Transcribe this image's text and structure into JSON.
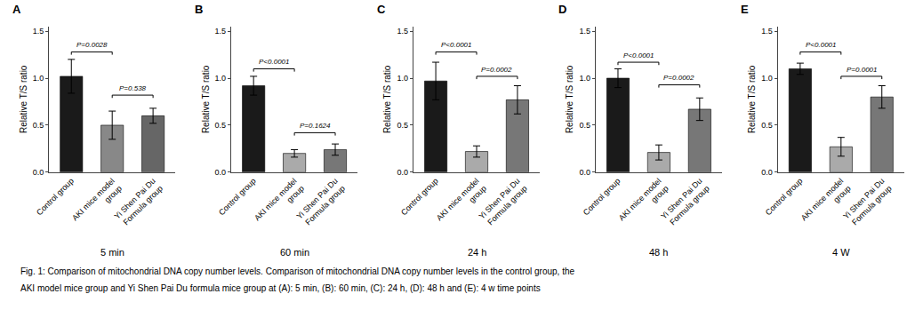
{
  "chart_data": [
    {
      "type": "bar",
      "title": "A",
      "subtitle": "5 min",
      "ylabel": "Relative T/S ratio",
      "categories": [
        "Control group",
        "AKI mice model\ngroup",
        "Yi Shen Pai Du\nFormula group"
      ],
      "values": [
        1.02,
        0.5,
        0.6
      ],
      "errors": [
        0.18,
        0.15,
        0.08
      ],
      "colors": [
        "#1a1a1a",
        "#888888",
        "#666666"
      ],
      "brackets": [
        {
          "bar1": 0,
          "bar2": 1,
          "label": "P=0.0028",
          "height": 1.28
        },
        {
          "bar1": 1,
          "bar2": 2,
          "label": "P=0.538",
          "height": 0.82
        }
      ],
      "ylim": [
        0,
        1.55
      ],
      "yticks": [
        {
          "value": 0.0,
          "label": "0.0"
        },
        0.5,
        {
          "value": 1.0,
          "label": "1.0"
        },
        1.5
      ],
      "grid": false
    },
    {
      "type": "bar",
      "title": "B",
      "subtitle": "60 min",
      "ylabel": "Relative T/S ratio",
      "categories": [
        "Control group",
        "AKI mice model\ngroup",
        "Yi Shen Pai Du\nFormula group"
      ],
      "values": [
        0.92,
        0.2,
        0.24
      ],
      "errors": [
        0.1,
        0.04,
        0.06
      ],
      "colors": [
        "#1a1a1a",
        "#aaaaaa",
        "#777777"
      ],
      "brackets": [
        {
          "bar1": 0,
          "bar2": 1,
          "label": "P<0.0001",
          "height": 1.1
        },
        {
          "bar1": 1,
          "bar2": 2,
          "label": "P=0.1624",
          "height": 0.42
        }
      ],
      "ylim": [
        0,
        1.55
      ],
      "yticks": [
        {
          "value": 0.0,
          "label": "0.0"
        },
        0.5,
        {
          "value": 1.0,
          "label": "1.0"
        },
        1.5
      ],
      "grid": false
    },
    {
      "type": "bar",
      "title": "C",
      "subtitle": "24 h",
      "ylabel": "Relative T/S ratio",
      "categories": [
        "Control group",
        "AKI mice model\ngroup",
        "Yi Shen Pai Du\nFormula group"
      ],
      "values": [
        0.97,
        0.22,
        0.77
      ],
      "errors": [
        0.2,
        0.06,
        0.15
      ],
      "colors": [
        "#1a1a1a",
        "#aaaaaa",
        "#777777"
      ],
      "brackets": [
        {
          "bar1": 0,
          "bar2": 1,
          "label": "P<0.0001",
          "height": 1.28
        },
        {
          "bar1": 1,
          "bar2": 2,
          "label": "P=0.0002",
          "height": 1.02
        }
      ],
      "ylim": [
        0,
        1.55
      ],
      "yticks": [
        {
          "value": 0.0,
          "label": "0.0"
        },
        0.5,
        {
          "value": 1.0,
          "label": "1.0"
        },
        1.5
      ],
      "grid": false
    },
    {
      "type": "bar",
      "title": "D",
      "subtitle": "48 h",
      "ylabel": "Relative T/S ratio",
      "categories": [
        "Control group",
        "AKI mice model\ngroup",
        "Yi Shen Pai Du\nFormula group"
      ],
      "values": [
        1.0,
        0.21,
        0.67
      ],
      "errors": [
        0.1,
        0.08,
        0.12
      ],
      "colors": [
        "#1a1a1a",
        "#aaaaaa",
        "#777777"
      ],
      "brackets": [
        {
          "bar1": 0,
          "bar2": 1,
          "label": "P<0.0001",
          "height": 1.17
        },
        {
          "bar1": 1,
          "bar2": 2,
          "label": "P=0.0002",
          "height": 0.93
        }
      ],
      "ylim": [
        0,
        1.55
      ],
      "yticks": [
        {
          "value": 0.0,
          "label": "0.0"
        },
        0.5,
        {
          "value": 1.0,
          "label": "1.0"
        },
        1.5
      ],
      "grid": false
    },
    {
      "type": "bar",
      "title": "E",
      "subtitle": "4 W",
      "ylabel": "Relative T/S ratio",
      "categories": [
        "Control group",
        "AKI mice model\ngroup",
        "Yi Shen Pai Du\nFormula group"
      ],
      "values": [
        1.1,
        0.27,
        0.8
      ],
      "errors": [
        0.06,
        0.1,
        0.12
      ],
      "colors": [
        "#1a1a1a",
        "#aaaaaa",
        "#777777"
      ],
      "brackets": [
        {
          "bar1": 0,
          "bar2": 1,
          "label": "P<0.0001",
          "height": 1.28
        },
        {
          "bar1": 1,
          "bar2": 2,
          "label": "P=0.0001",
          "height": 1.02
        }
      ],
      "ylim": [
        0,
        1.55
      ],
      "yticks": [
        {
          "value": 0.0,
          "label": "0.0"
        },
        0.5,
        {
          "value": 1.0,
          "label": "1.0"
        },
        1.5
      ],
      "grid": false
    }
  ],
  "caption": [
    "Fig. 1: Comparison of mitochondrial DNA copy number levels. Comparison of mitochondrial DNA copy number levels in the control group, the",
    "AKI model mice group and Yi Shen Pai Du formula mice group at (A): 5 min, (B): 60 min, (C): 24 h, (D): 48 h and (E): 4 w time points"
  ]
}
